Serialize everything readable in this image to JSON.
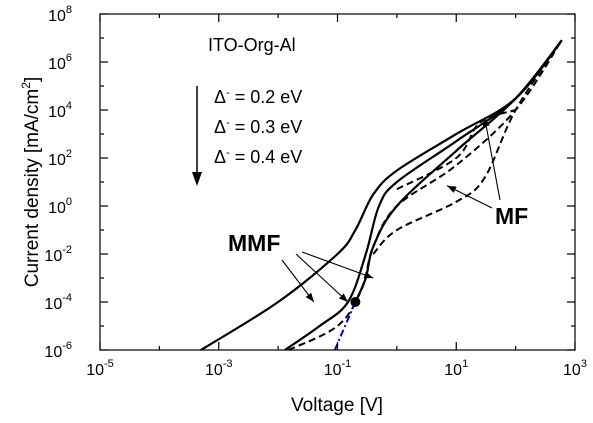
{
  "chart_data": {
    "type": "line",
    "xlabel": "Voltage [V]",
    "ylabel_main": "Current density [mA/cm",
    "ylabel_sup": "2",
    "ylabel_end": "]",
    "x_scale": "log",
    "y_scale": "log",
    "xlim": [
      1e-05,
      1000
    ],
    "ylim": [
      1e-06,
      100000000.0
    ],
    "x_ticks": [
      {
        "value": 1e-05,
        "base": "10",
        "exp": "-5"
      },
      {
        "value": 0.001,
        "base": "10",
        "exp": "-3"
      },
      {
        "value": 0.1,
        "base": "10",
        "exp": "-1"
      },
      {
        "value": 10,
        "base": "10",
        "exp": "1"
      },
      {
        "value": 1000,
        "base": "10",
        "exp": "3"
      }
    ],
    "y_ticks": [
      {
        "value": 1e-06,
        "base": "10",
        "exp": "-6"
      },
      {
        "value": 0.0001,
        "base": "10",
        "exp": "-4"
      },
      {
        "value": 0.01,
        "base": "10",
        "exp": "-2"
      },
      {
        "value": 1,
        "base": "10",
        "exp": "0"
      },
      {
        "value": 100,
        "base": "10",
        "exp": "2"
      },
      {
        "value": 10000.0,
        "base": "10",
        "exp": "4"
      },
      {
        "value": 1000000.0,
        "base": "10",
        "exp": "6"
      },
      {
        "value": 100000000.0,
        "base": "10",
        "exp": "8"
      }
    ],
    "grid": false,
    "legend": {
      "title": "ITO-Org-Al",
      "entries": [
        {
          "symbol": "Δ",
          "sup": "-",
          "text": " = 0.2 eV"
        },
        {
          "symbol": "Δ",
          "sup": "-",
          "text": " = 0.3 eV"
        },
        {
          "symbol": "Δ",
          "sup": "-",
          "text": " = 0.4 eV"
        }
      ]
    },
    "series": [
      {
        "style": "solid",
        "color": "#000000",
        "points": [
          [
            0.0005,
            1e-06
          ],
          [
            0.01,
            0.0001
          ],
          [
            0.1,
            0.01
          ],
          [
            0.2,
            0.1
          ],
          [
            0.4,
            3
          ],
          [
            1,
            30
          ],
          [
            10,
            1000
          ],
          [
            100,
            30000.0
          ],
          [
            600,
            8000000.0
          ]
        ]
      },
      {
        "style": "solid",
        "color": "#000000",
        "points": [
          [
            0.013,
            1e-06
          ],
          [
            0.05,
            1e-05
          ],
          [
            0.15,
            0.0001
          ],
          [
            0.3,
            0.01
          ],
          [
            0.5,
            1
          ],
          [
            1,
            10
          ],
          [
            10,
            500
          ],
          [
            100,
            30000.0
          ],
          [
            600,
            8000000.0
          ]
        ]
      },
      {
        "style": "solid",
        "color": "#000000",
        "points": [
          [
            0.2,
            0.0001
          ],
          [
            0.3,
            0.001
          ],
          [
            0.4,
            0.02
          ],
          [
            1,
            1
          ],
          [
            10,
            200
          ],
          [
            100,
            30000.0
          ],
          [
            600,
            8000000.0
          ]
        ]
      },
      {
        "style": "dashed",
        "color": "#000000",
        "points": [
          [
            0.015,
            1e-06
          ],
          [
            0.1,
            1e-05
          ],
          [
            0.25,
            0.0003
          ],
          [
            0.4,
            0.02
          ],
          [
            1,
            1
          ],
          [
            10,
            50
          ],
          [
            100,
            10000.0
          ],
          [
            600,
            8000000.0
          ]
        ]
      },
      {
        "style": "dashed",
        "color": "#000000",
        "points": [
          [
            0.4,
            0.01
          ],
          [
            1,
            0.1
          ],
          [
            10,
            1.5
          ],
          [
            30,
            15
          ],
          [
            100,
            10000.0
          ],
          [
            600,
            8000000.0
          ]
        ]
      },
      {
        "style": "dashed",
        "color": "#000000",
        "points": [
          [
            1,
            5
          ],
          [
            10,
            100
          ],
          [
            25,
            3000
          ],
          [
            100,
            10000.0
          ]
        ]
      },
      {
        "style": "dashdot",
        "color": "#0000cc",
        "points": [
          [
            0.09,
            1e-06
          ],
          [
            0.2,
            0.0001
          ]
        ]
      }
    ],
    "markers": [
      {
        "x": 0.2,
        "y": 0.0001
      }
    ],
    "annotations": [
      {
        "label": "MMF",
        "arrow_targets": [
          [
            0.04,
            0.0001
          ],
          [
            0.15,
            0.0001
          ],
          [
            0.4,
            0.001
          ]
        ]
      },
      {
        "label": "MF",
        "arrow_targets": [
          [
            7,
            7
          ],
          [
            30,
            5000
          ]
        ]
      }
    ]
  }
}
